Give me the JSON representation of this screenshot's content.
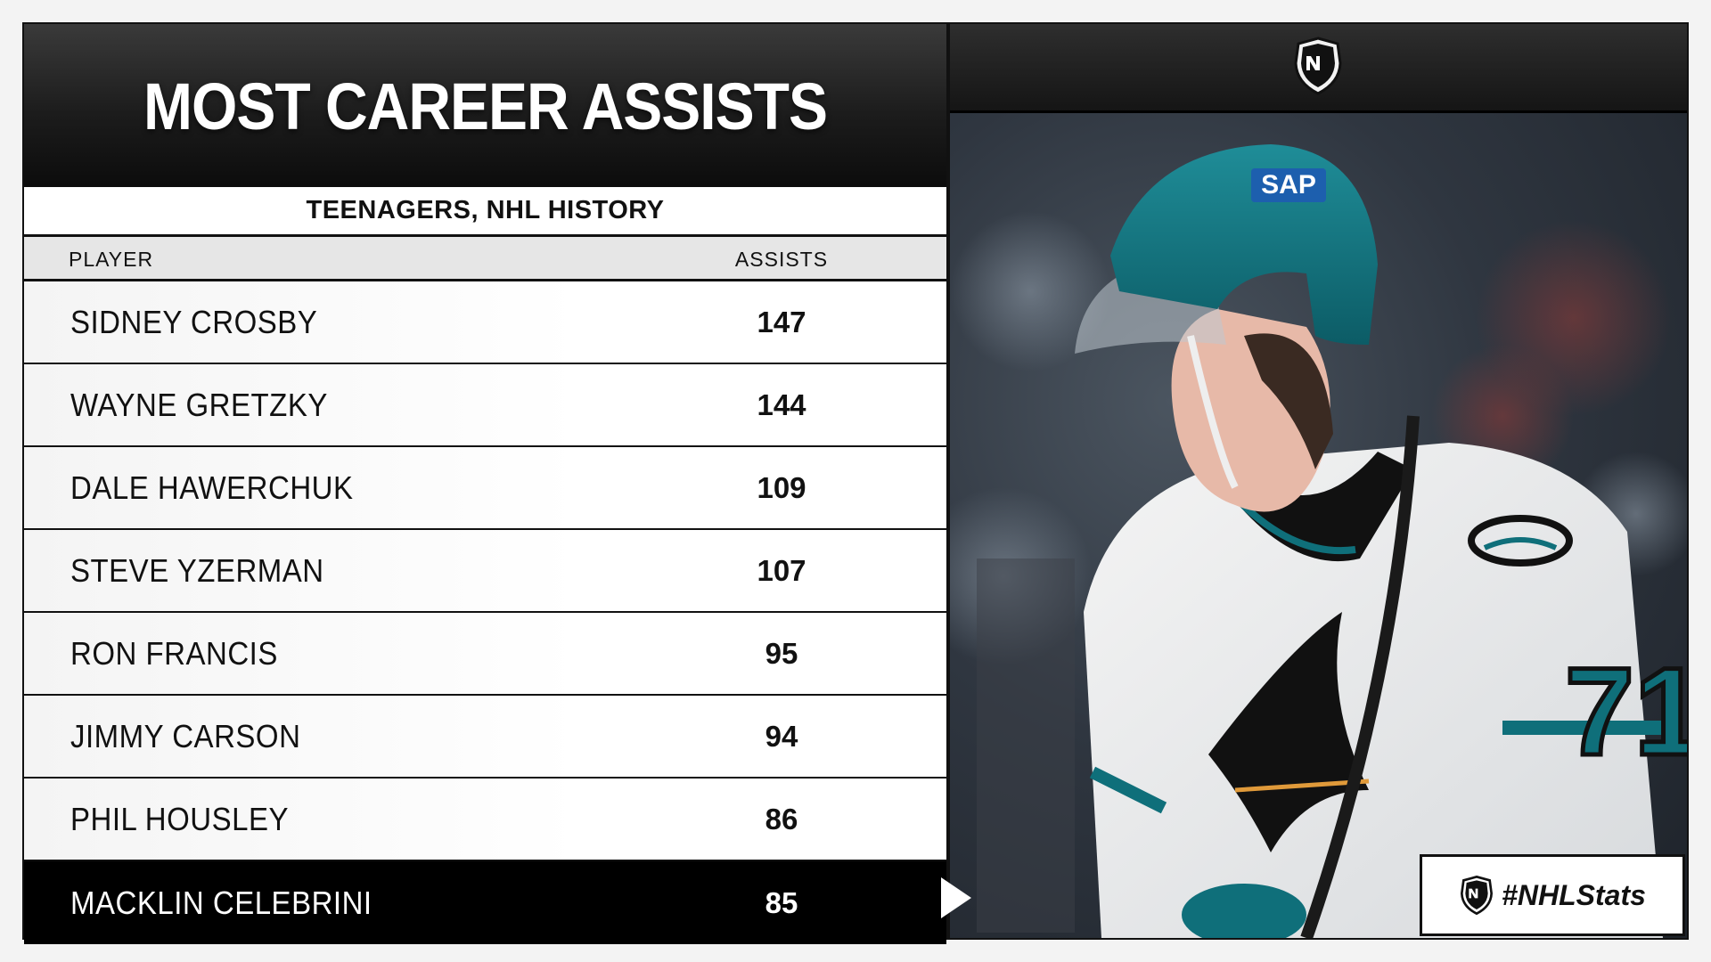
{
  "title": "MOST CAREER ASSISTS",
  "subtitle": "TEENAGERS, NHL HISTORY",
  "columns": {
    "player": "PLAYER",
    "assists": "ASSISTS"
  },
  "rows": [
    {
      "player": "SIDNEY CROSBY",
      "assists": "147"
    },
    {
      "player": "WAYNE GRETZKY",
      "assists": "144"
    },
    {
      "player": "DALE HAWERCHUK",
      "assists": "109"
    },
    {
      "player": "STEVE YZERMAN",
      "assists": "107"
    },
    {
      "player": "RON FRANCIS",
      "assists": "95"
    },
    {
      "player": "JIMMY CARSON",
      "assists": "94"
    },
    {
      "player": "PHIL HOUSLEY",
      "assists": "86"
    },
    {
      "player": "MACKLIN CELEBRINI",
      "assists": "85"
    }
  ],
  "highlight_index": 7,
  "hashtag": "#NHLStats",
  "jersey_number": "71",
  "helmet_sponsor": "SAP",
  "colors": {
    "teal": "#0f6f7a",
    "dark": "#111111",
    "highlight_row": "#000000"
  },
  "icons": {
    "league_logo": "nhl-shield-icon",
    "pointer": "triangle-right-icon"
  }
}
